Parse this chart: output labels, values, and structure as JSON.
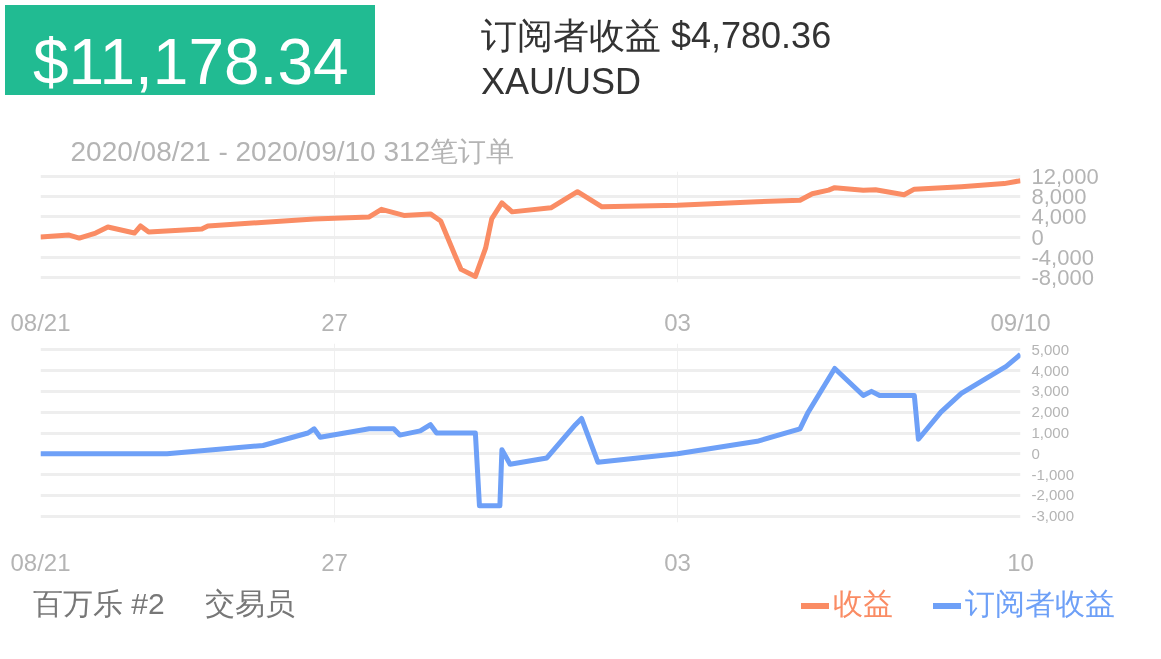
{
  "chart_data": [
    {
      "type": "line",
      "title": "$11,178.34",
      "subtitle": "订阅者收益 $4,780.36",
      "annotations": [
        "XAU/USD",
        "2020/08/21 - 2020/09/10  312笔订单"
      ],
      "xlim": [
        "2020-08-21",
        "2020-09-10"
      ],
      "xticks": [
        {
          "value": "2020-08-21",
          "label": "08/21"
        },
        {
          "value": "2020-08-27",
          "label": "27"
        },
        {
          "value": "2020-09-03",
          "label": "03"
        },
        {
          "value": "2020-09-10",
          "label": "09/10"
        }
      ],
      "ylim": [
        -9000,
        13000
      ],
      "yticks": [
        {
          "value": 12000,
          "label": "12,000"
        },
        {
          "value": 8000,
          "label": "8,000"
        },
        {
          "value": 4000,
          "label": "4,000"
        },
        0,
        {
          "value": -4000,
          "label": "-4,000"
        },
        {
          "value": -8000,
          "label": "-8,000"
        }
      ],
      "grid": true,
      "legend": "bottom right",
      "series": [
        {
          "name": "收益",
          "color": "#fa8c64",
          "x": [
            "2020-08-21T00:00",
            "2020-08-21T14:00",
            "2020-08-21T19:00",
            "2020-08-22T03:00",
            "2020-08-22T09:00",
            "2020-08-22T22:00",
            "2020-08-23T01:00",
            "2020-08-23T05:00",
            "2020-08-24T07:00",
            "2020-08-24T10:00",
            "2020-08-26T14:00",
            "2020-08-27T17:00",
            "2020-08-27T23:00",
            "2020-08-28T10:00",
            "2020-08-28T23:00",
            "2020-08-29T04:00",
            "2020-08-29T11:00",
            "2020-08-29T14:00",
            "2020-08-29T21:00",
            "2020-08-30T02:00",
            "2020-08-30T05:00",
            "2020-08-30T10:00",
            "2020-08-30T15:00",
            "2020-08-31T10:00",
            "2020-08-31T23:00",
            "2020-09-01T11:00",
            "2020-09-03T00:00",
            "2020-09-04T15:00",
            "2020-09-05T12:00",
            "2020-09-05T18:00",
            "2020-09-06T02:00",
            "2020-09-06T05:00",
            "2020-09-06T19:00",
            "2020-09-07T01:00",
            "2020-09-07T15:00",
            "2020-09-07T20:00",
            "2020-09-08T19:00",
            "2020-09-09T16:00",
            "2020-09-10T00:00"
          ],
          "values": [
            0,
            400,
            -200,
            800,
            2000,
            800,
            2200,
            1000,
            1600,
            2200,
            3600,
            4000,
            5500,
            4300,
            4600,
            3200,
            -3600,
            -6400,
            -7800,
            -2200,
            3600,
            6800,
            5000,
            5800,
            9000,
            6000,
            6300,
            7000,
            7300,
            8600,
            9300,
            9800,
            9300,
            9400,
            8400,
            9500,
            10000,
            10600,
            11178
          ]
        }
      ]
    },
    {
      "type": "line",
      "annotations": [
        "百万乐 #2",
        "交易员"
      ],
      "xlim": [
        "2020-08-21",
        "2020-09-10"
      ],
      "xticks": [
        {
          "value": "2020-08-21",
          "label": "08/21"
        },
        {
          "value": "2020-08-27",
          "label": "27"
        },
        {
          "value": "2020-09-03",
          "label": "03"
        },
        {
          "value": "2020-09-10",
          "label": "10"
        }
      ],
      "ylim": [
        -3300,
        5300
      ],
      "yticks": [
        {
          "value": 5000,
          "label": "5,000"
        },
        {
          "value": 4000,
          "label": "4,000"
        },
        {
          "value": 3000,
          "label": "3,000"
        },
        {
          "value": 2000,
          "label": "2,000"
        },
        {
          "value": 1000,
          "label": "1,000"
        },
        0,
        {
          "value": -1000,
          "label": "-1,000"
        },
        {
          "value": -2000,
          "label": "-2,000"
        },
        {
          "value": -3000,
          "label": "-3,000"
        }
      ],
      "grid": true,
      "legend": "bottom right",
      "series": [
        {
          "name": "订阅者收益",
          "color": "#6ea0f7",
          "x": [
            "2020-08-21T00:00",
            "2020-08-23T14:00",
            "2020-08-25T13:00",
            "2020-08-26T11:00",
            "2020-08-26T14:00",
            "2020-08-26T17:00",
            "2020-08-27T17:00",
            "2020-08-28T05:00",
            "2020-08-28T08:00",
            "2020-08-28T18:00",
            "2020-08-28T23:00",
            "2020-08-29T02:00",
            "2020-08-29T21:00",
            "2020-08-29T23:00",
            "2020-08-30T09:00",
            "2020-08-30T10:00",
            "2020-08-30T14:00",
            "2020-08-31T08:00",
            "2020-08-31T22:00",
            "2020-09-01T01:00",
            "2020-09-01T09:00",
            "2020-09-03T00:00",
            "2020-09-04T15:00",
            "2020-09-05T12:00",
            "2020-09-05T16:00",
            "2020-09-06T05:00",
            "2020-09-06T19:00",
            "2020-09-06T23:00",
            "2020-09-07T03:00",
            "2020-09-07T20:00",
            "2020-09-07T22:00",
            "2020-09-08T09:00",
            "2020-09-08T19:00",
            "2020-09-09T17:00",
            "2020-09-10T00:00"
          ],
          "values": [
            0,
            0,
            400,
            1000,
            1200,
            800,
            1200,
            1200,
            900,
            1100,
            1400,
            1000,
            1000,
            -2500,
            -2500,
            200,
            -500,
            -200,
            1400,
            1700,
            -400,
            0,
            600,
            1200,
            2000,
            4100,
            2800,
            3000,
            2800,
            2800,
            700,
            2000,
            2900,
            4200,
            4780
          ]
        }
      ]
    }
  ]
}
